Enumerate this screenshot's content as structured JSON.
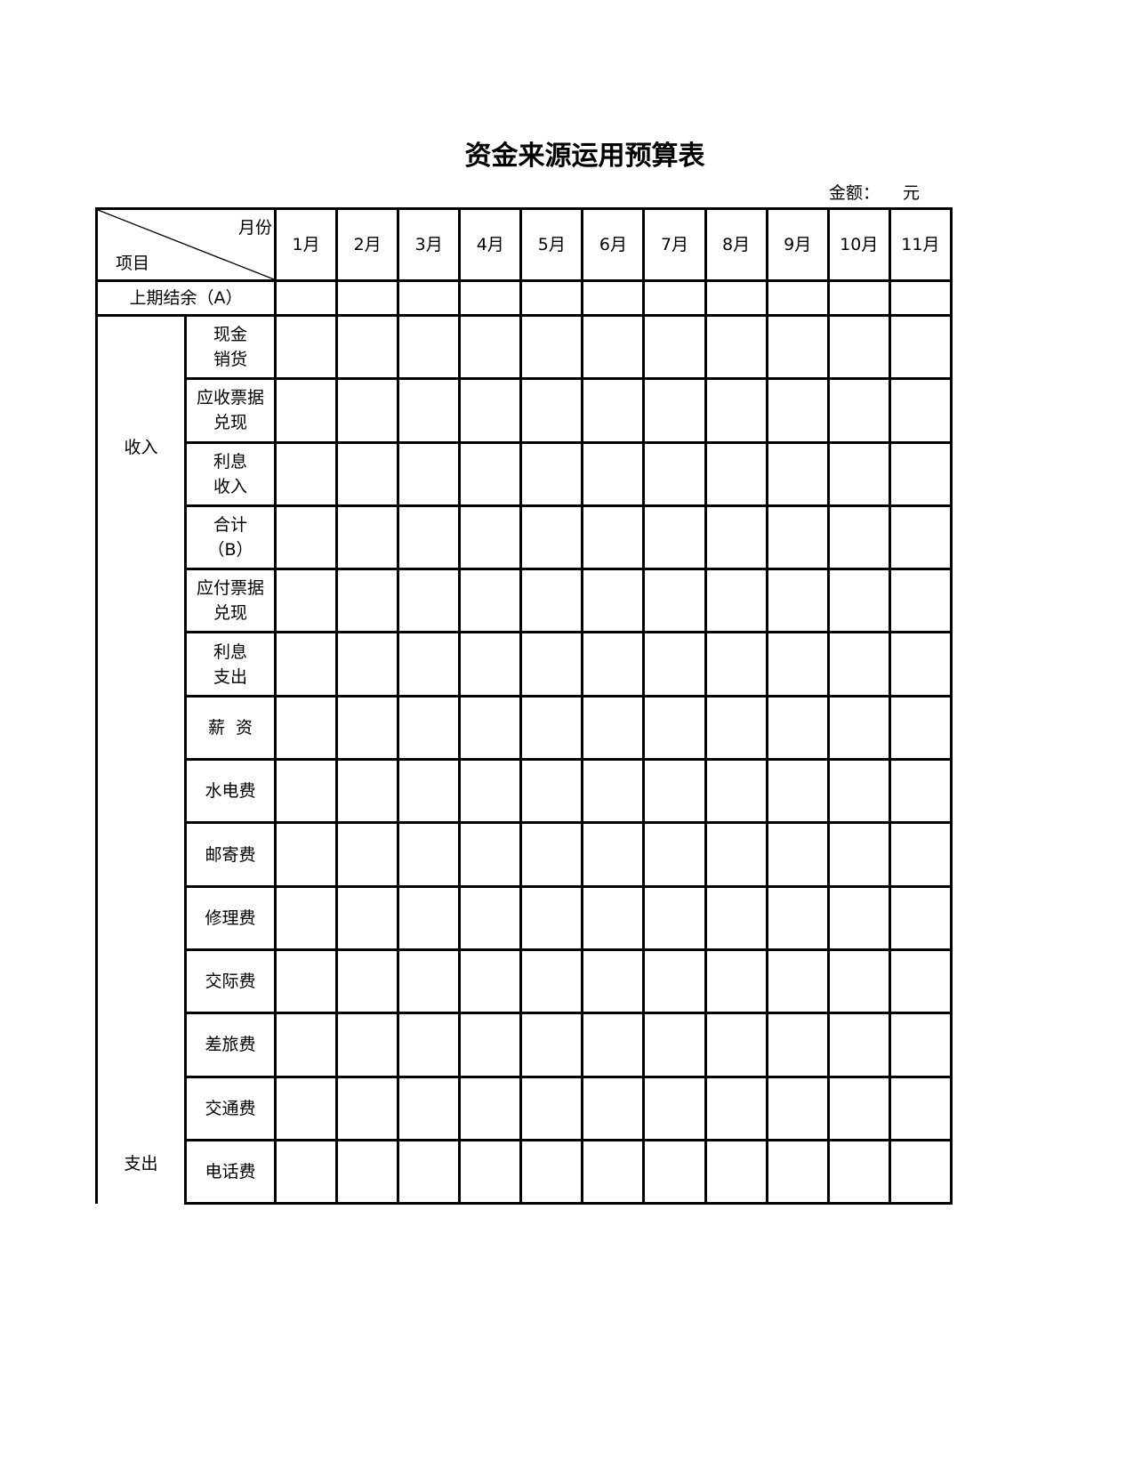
{
  "title": "资金来源运用预算表",
  "unit": {
    "label": "金额：",
    "currency": "元"
  },
  "table": {
    "corner_top": "月份",
    "corner_bottom": "项目",
    "months": [
      "1月",
      "2月",
      "3月",
      "4月",
      "5月",
      "6月",
      "7月",
      "8月",
      "9月",
      "10月",
      "11月"
    ],
    "opening_balance": "上期结余（A）",
    "income_label": "收入",
    "expense_label": "支出",
    "rows": [
      [
        "现金",
        "销货"
      ],
      [
        "应收票据",
        "兑现"
      ],
      [
        "利息",
        "收入"
      ],
      [
        "合计",
        "（B）"
      ],
      [
        "应付票据",
        "兑现"
      ],
      [
        "利息",
        "支出"
      ],
      [
        "薪  资"
      ],
      [
        "水电费"
      ],
      [
        "邮寄费"
      ],
      [
        "修理费"
      ],
      [
        "交际费"
      ],
      [
        "差旅费"
      ],
      [
        "交通费"
      ],
      [
        "电话费"
      ]
    ]
  }
}
